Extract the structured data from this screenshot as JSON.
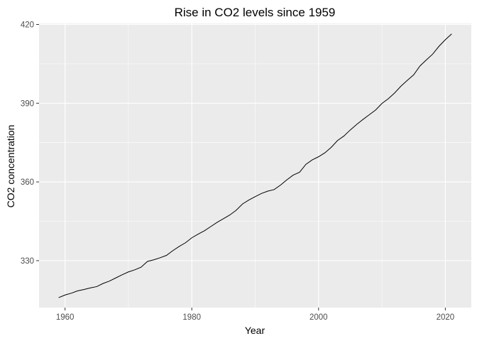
{
  "chart_data": {
    "type": "line",
    "title": "Rise in CO2 levels since 1959",
    "xlabel": "Year",
    "ylabel": "CO2 concentration",
    "xlim": [
      1955.9,
      2024.1
    ],
    "ylim": [
      312.1,
      420.4
    ],
    "x_ticks": [
      1960,
      1980,
      2000,
      2020
    ],
    "y_ticks": [
      330,
      360,
      390,
      420
    ],
    "x_minor": [
      1970,
      1990,
      2010
    ],
    "y_minor": [
      345,
      375,
      405
    ],
    "grid": true,
    "background": "#ebebeb",
    "line_color": "#000000",
    "series": [
      {
        "x": [
          1959,
          1960,
          1961,
          1962,
          1963,
          1964,
          1965,
          1966,
          1967,
          1968,
          1969,
          1970,
          1971,
          1972,
          1973,
          1974,
          1975,
          1976,
          1977,
          1978,
          1979,
          1980,
          1981,
          1982,
          1983,
          1984,
          1985,
          1986,
          1987,
          1988,
          1989,
          1990,
          1991,
          1992,
          1993,
          1994,
          1995,
          1996,
          1997,
          1998,
          1999,
          2000,
          2001,
          2002,
          2003,
          2004,
          2005,
          2006,
          2007,
          2008,
          2009,
          2010,
          2011,
          2012,
          2013,
          2014,
          2015,
          2016,
          2017,
          2018,
          2019,
          2020,
          2021
        ],
        "values": [
          315.9,
          316.9,
          317.6,
          318.5,
          319.0,
          319.6,
          320.1,
          321.3,
          322.2,
          323.4,
          324.6,
          325.7,
          326.5,
          327.5,
          329.7,
          330.3,
          331.1,
          332.0,
          333.8,
          335.4,
          336.8,
          338.7,
          340.1,
          341.4,
          343.0,
          344.6,
          346.0,
          347.4,
          349.2,
          351.6,
          353.1,
          354.4,
          355.6,
          356.5,
          357.1,
          358.8,
          360.8,
          362.6,
          363.7,
          366.7,
          368.4,
          369.6,
          371.1,
          373.2,
          375.8,
          377.5,
          379.8,
          381.9,
          383.8,
          385.6,
          387.4,
          389.9,
          391.7,
          393.9,
          396.5,
          398.7,
          400.8,
          404.2,
          406.5,
          408.7,
          411.7,
          414.2,
          416.4
        ]
      }
    ]
  }
}
